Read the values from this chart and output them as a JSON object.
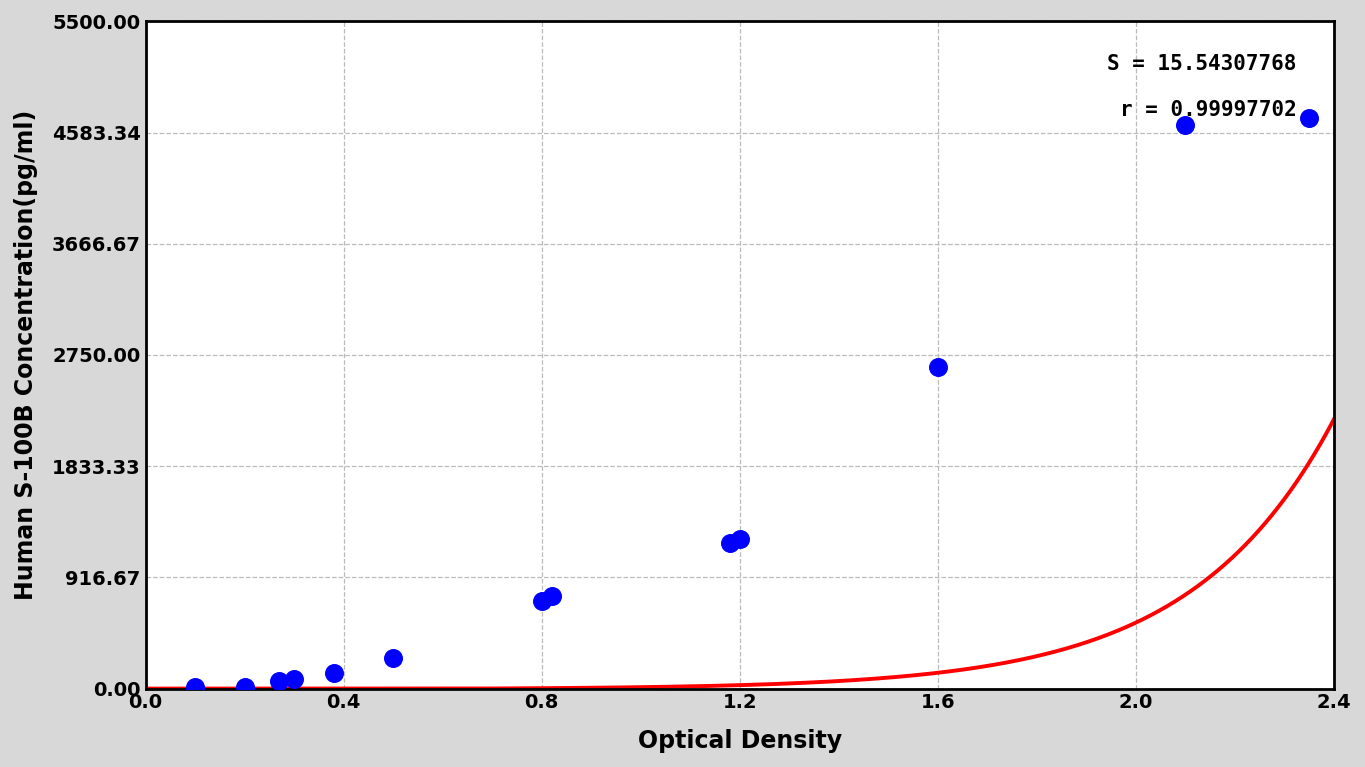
{
  "data_points_x": [
    0.1,
    0.2,
    0.27,
    0.3,
    0.38,
    0.5,
    0.8,
    0.82,
    1.18,
    1.2,
    1.6,
    2.1,
    2.35
  ],
  "data_points_y": [
    10,
    15,
    60,
    80,
    130,
    250,
    720,
    760,
    1200,
    1230,
    2650,
    4650,
    4700
  ],
  "xlim": [
    0.0,
    2.4
  ],
  "ylim": [
    0.0,
    5500.0
  ],
  "yticks": [
    0.0,
    916.67,
    1833.33,
    2750.0,
    3666.67,
    4583.34,
    5500.0
  ],
  "ytick_labels": [
    "0.00",
    "916.67",
    "1833.33",
    "2750.00",
    "3666.67",
    "4583.34",
    "5500.00"
  ],
  "xticks": [
    0.0,
    0.4,
    0.8,
    1.2,
    1.6,
    2.0,
    2.4
  ],
  "xlabel": "Optical Density",
  "ylabel": "Human S-100B Concentration(pg/ml)",
  "annotation_S": "S = 15.54307768",
  "annotation_r": "r = 0.99997702",
  "curve_color": "#FF0000",
  "point_color": "#0000FF",
  "background_color": "#D8D8D8",
  "plot_background": "#FFFFFF",
  "grid_color": "#BBBBBB",
  "label_fontsize": 17,
  "tick_fontsize": 14,
  "annotation_fontsize": 15
}
